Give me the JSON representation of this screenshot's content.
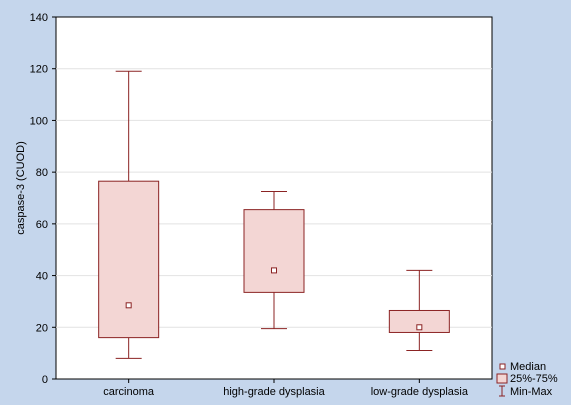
{
  "colors": {
    "background": "#c5d6ec",
    "plot_area": "#ffffff",
    "box_fill": "#f3d6d4",
    "box_stroke": "#8b2323",
    "grid": "#e2e2e2"
  },
  "chart_data": {
    "type": "box",
    "title": "",
    "xlabel": "",
    "ylabel": "caspase-3 (CUOD)",
    "ylim": [
      0,
      140
    ],
    "yticks": [
      0,
      20,
      40,
      60,
      80,
      100,
      120,
      140
    ],
    "grid": true,
    "legend_position": "bottom-right",
    "categories": [
      "carcinoma",
      "high-grade dysplasia",
      "low-grade dysplasia"
    ],
    "series": [
      {
        "category": "carcinoma",
        "min": 8,
        "q1": 16,
        "median": 28.5,
        "q3": 76.5,
        "max": 119
      },
      {
        "category": "high-grade dysplasia",
        "min": 19.5,
        "q1": 33.5,
        "median": 42,
        "q3": 65.5,
        "max": 72.5
      },
      {
        "category": "low-grade dysplasia",
        "min": 11,
        "q1": 18,
        "median": 20,
        "q3": 26.5,
        "max": 42
      }
    ],
    "legend": {
      "median": "Median",
      "iqr": "25%-75%",
      "range": "Min-Max"
    }
  }
}
